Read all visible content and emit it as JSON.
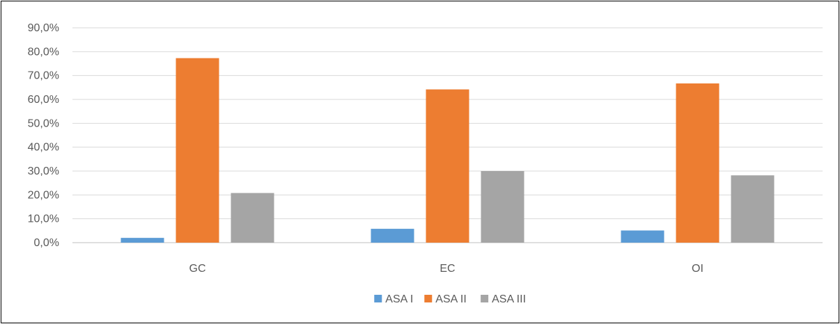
{
  "chart_data": {
    "type": "bar",
    "categories": [
      "GC",
      "EC",
      "OI"
    ],
    "series": [
      {
        "name": "ASA I",
        "values": [
          2.0,
          5.8,
          5.1
        ],
        "color": "#5B9BD5"
      },
      {
        "name": "ASA II",
        "values": [
          77.3,
          64.2,
          66.7
        ],
        "color": "#ED7D31"
      },
      {
        "name": "ASA III",
        "values": [
          20.8,
          30.0,
          28.2
        ],
        "color": "#A5A5A5"
      }
    ],
    "yticks": [
      "0,0%",
      "10,0%",
      "20,0%",
      "30,0%",
      "40,0%",
      "50,0%",
      "60,0%",
      "70,0%",
      "80,0%",
      "90,0%"
    ],
    "ylim": [
      0,
      90
    ],
    "grid": true,
    "legend_position": "bottom",
    "title": "",
    "xlabel": "",
    "ylabel": ""
  }
}
